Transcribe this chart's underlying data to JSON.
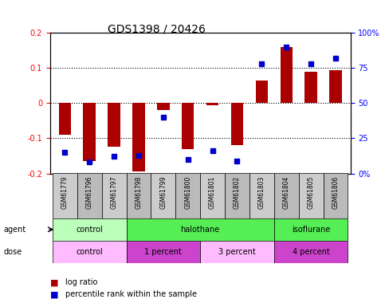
{
  "title": "GDS1398 / 20426",
  "samples": [
    "GSM61779",
    "GSM61796",
    "GSM61797",
    "GSM61798",
    "GSM61799",
    "GSM61800",
    "GSM61801",
    "GSM61802",
    "GSM61803",
    "GSM61804",
    "GSM61805",
    "GSM61806"
  ],
  "log_ratio": [
    -0.09,
    -0.165,
    -0.125,
    -0.195,
    -0.02,
    -0.13,
    -0.005,
    -0.12,
    0.065,
    0.16,
    0.09,
    0.095
  ],
  "percentile_rank": [
    15,
    8,
    12,
    13,
    40,
    10,
    16,
    9,
    78,
    90,
    78,
    82
  ],
  "bar_color": "#aa0000",
  "dot_color": "#0000cc",
  "ylim_left": [
    -0.2,
    0.2
  ],
  "ylim_right": [
    0,
    100
  ],
  "yticks_left": [
    -0.2,
    -0.1,
    0.0,
    0.1,
    0.2
  ],
  "yticks_right": [
    0,
    25,
    50,
    75,
    100
  ],
  "ytick_labels_right": [
    "0%",
    "25%",
    "50%",
    "75%",
    "100%"
  ],
  "hlines": [
    -0.1,
    0.0,
    0.1
  ],
  "agent_groups": [
    {
      "label": "control",
      "start": 0,
      "end": 3,
      "color": "#aaffaa"
    },
    {
      "label": "halothane",
      "start": 3,
      "end": 9,
      "color": "#44dd44"
    },
    {
      "label": "isoflurane",
      "start": 9,
      "end": 12,
      "color": "#44dd44"
    }
  ],
  "dose_groups": [
    {
      "label": "control",
      "start": 0,
      "end": 3,
      "color": "#ffaaff"
    },
    {
      "label": "1 percent",
      "start": 3,
      "end": 6,
      "color": "#dd44dd"
    },
    {
      "label": "3 percent",
      "start": 6,
      "end": 9,
      "color": "#ffaaff"
    },
    {
      "label": "4 percent",
      "start": 9,
      "end": 12,
      "color": "#dd44dd"
    }
  ],
  "legend_log_ratio": "log ratio",
  "legend_percentile": "percentile rank within the sample",
  "agent_label": "agent",
  "dose_label": "dose",
  "bg_color": "#ffffff",
  "plot_bg_color": "#ffffff",
  "border_color": "#000000"
}
